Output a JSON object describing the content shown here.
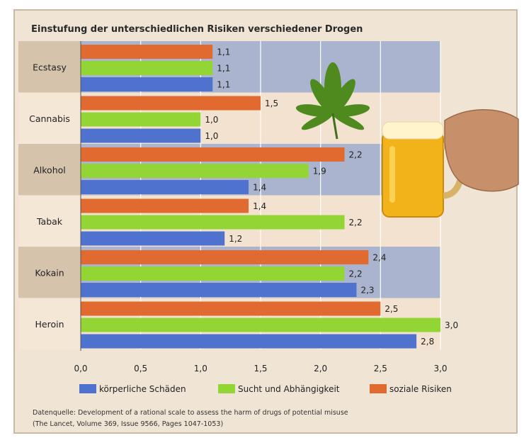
{
  "chart_data": {
    "type": "bar",
    "orientation": "horizontal",
    "title": "Einstufung der unterschiedlichen Risiken verschiedener Drogen",
    "categories": [
      "Ecstasy",
      "Cannabis",
      "Alkohol",
      "Tabak",
      "Kokain",
      "Heroin"
    ],
    "series": [
      {
        "name": "soziale Risiken",
        "color": "#e06a2f",
        "values": [
          1.1,
          1.5,
          2.2,
          1.4,
          2.4,
          2.5
        ]
      },
      {
        "name": "Sucht und Abhängigkeit",
        "color": "#93d534",
        "values": [
          1.1,
          1.0,
          1.9,
          2.2,
          2.2,
          3.0
        ]
      },
      {
        "name": "körperliche Schäden",
        "color": "#4f72cf",
        "values": [
          1.1,
          1.0,
          1.4,
          1.2,
          2.3,
          2.8
        ]
      }
    ],
    "legend_order": [
      "körperliche Schäden",
      "Sucht und Abhängigkeit",
      "soziale Risiken"
    ],
    "value_labels": {
      "soziale Risiken": [
        "1,1",
        "1,5",
        "2,2",
        "1,4",
        "2,4",
        "2,5"
      ],
      "Sucht und Abhängigkeit": [
        "1,1",
        "1,0",
        "1,9",
        "2,2",
        "2,2",
        "3,0"
      ],
      "körperliche Schäden": [
        "1,1",
        "1,0",
        "1,4",
        "1,2",
        "2,3",
        "2,8"
      ]
    },
    "xlim": [
      0,
      3
    ],
    "xticks": [
      0,
      0.5,
      1,
      1.5,
      2,
      2.5,
      3
    ],
    "xtick_labels": [
      "0,0",
      "0,5",
      "1,0",
      "1,5",
      "2,0",
      "2,5",
      "3,0"
    ],
    "xlabel": "",
    "ylabel": "",
    "grid": true,
    "legend_position": "bottom",
    "source_lines": [
      "Datenquelle: Development of a rational scale to assess the harm of drugs of potential misuse",
      "(The Lancet, Volume 369, Issue 9566, Pages 1047-1053)"
    ],
    "colors": {
      "band_blue": "#aab4cf",
      "band_beige": "#f2e2cf",
      "label_dark": "#d6c3ac",
      "label_light": "#f5e7d6",
      "gridline": "#ffffff"
    },
    "decorations": [
      "cannabis-leaf-icon",
      "beer-mug-icon"
    ]
  }
}
